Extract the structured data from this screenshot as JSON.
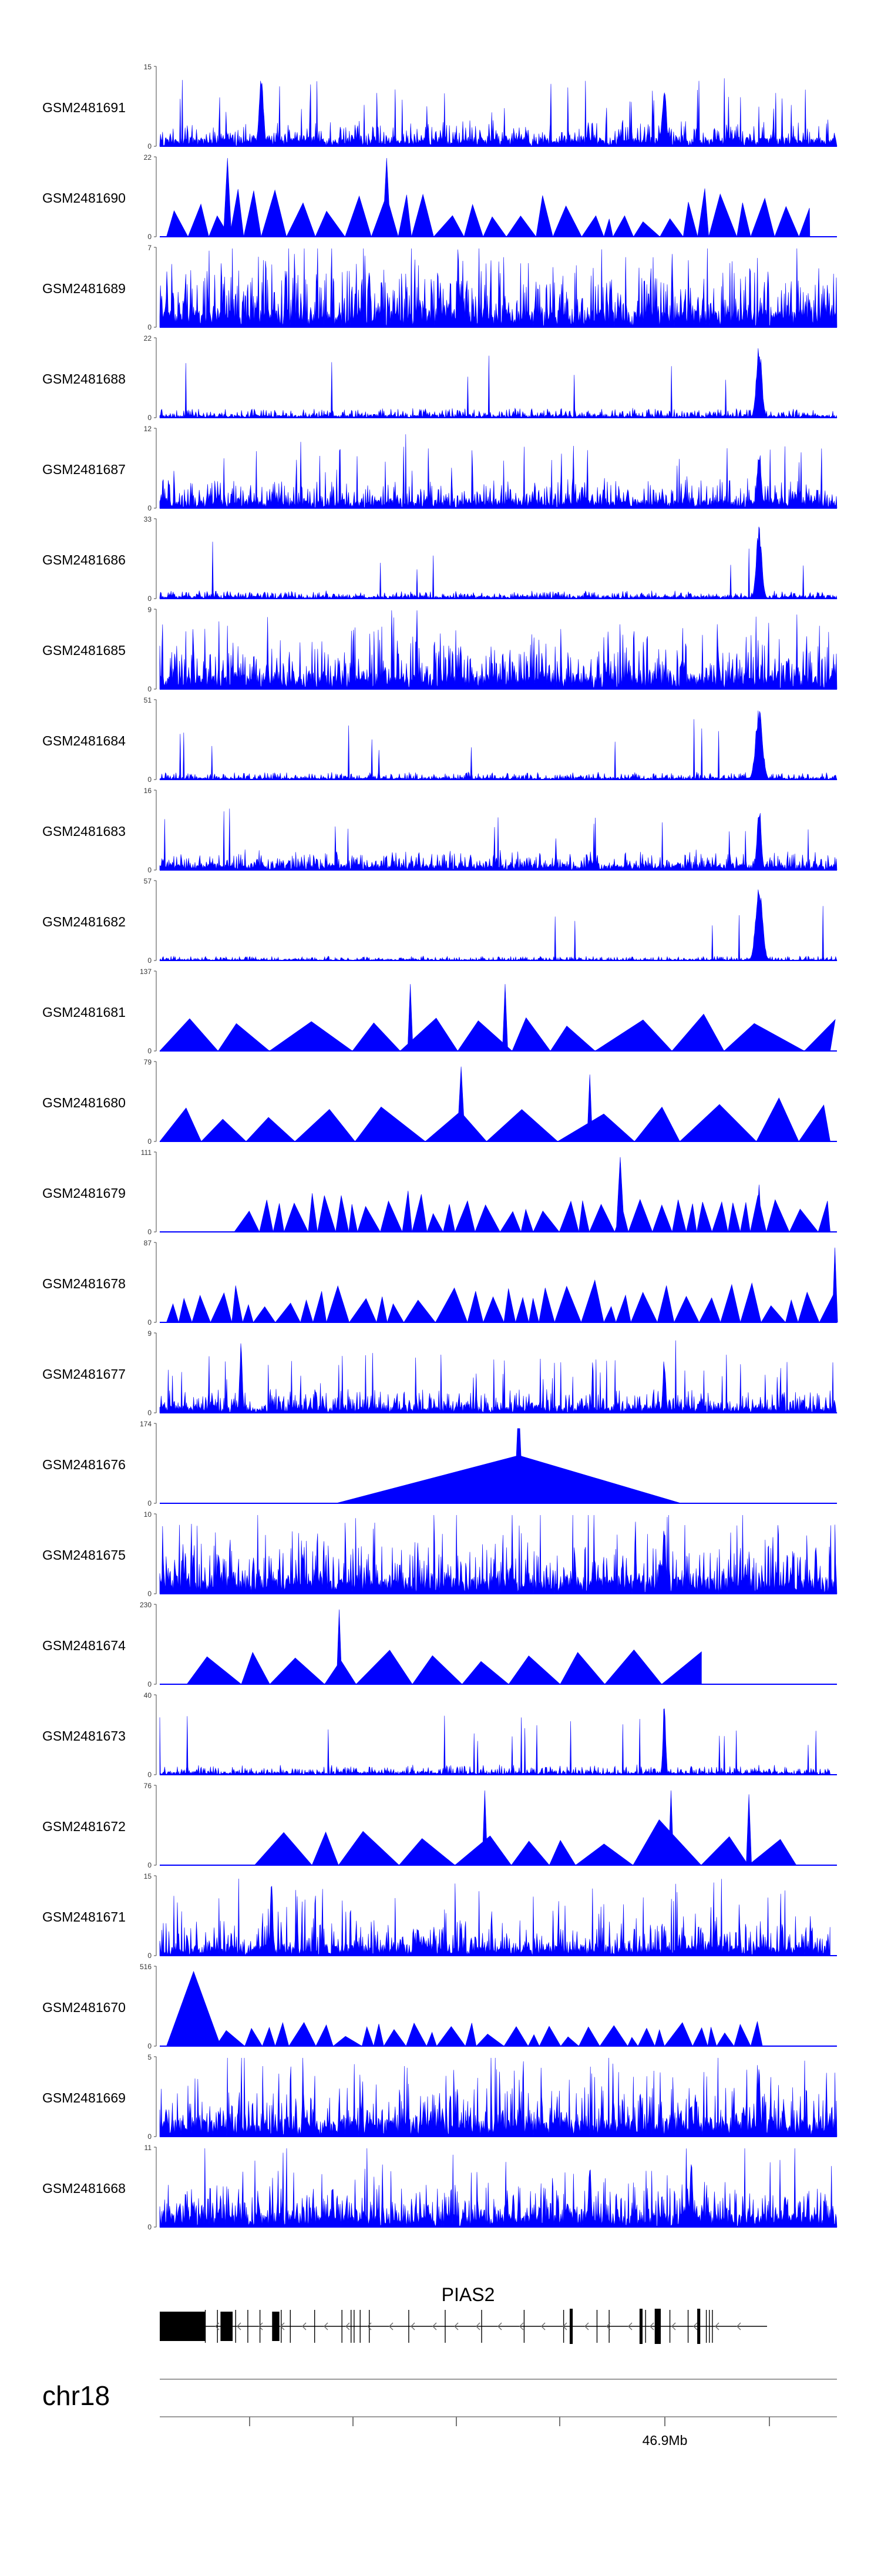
{
  "chart_data": {
    "type": "area",
    "title": "",
    "chromosome": "chr18",
    "gene": "PIAS2",
    "x_tick_labels": [
      "",
      "",
      "",
      "",
      "46.9Mb",
      ""
    ],
    "bar_color": "#0000ff",
    "tracks": [
      {
        "name": "GSM2481691",
        "ymax": "15",
        "ymin": "0",
        "style": "dense",
        "seed": 91,
        "base": 0.1,
        "noise": 0.25,
        "spike": 0.04,
        "start": 0.0,
        "end": 1.0,
        "peaks": [
          [
            0.15,
            0.003,
            0.95
          ],
          [
            0.745,
            0.003,
            0.8
          ]
        ]
      },
      {
        "name": "GSM2481690",
        "ymax": "22",
        "ymin": "0",
        "style": "tri",
        "seed": 90,
        "base": 0.3,
        "noise": 0.35,
        "spike": 0.05,
        "start": 0.01,
        "end": 0.96,
        "peaks": [
          [
            0.1,
            0.003,
            1.0
          ],
          [
            0.335,
            0.003,
            1.0
          ]
        ]
      },
      {
        "name": "GSM2481689",
        "ymax": "7",
        "ymin": "0",
        "style": "dense",
        "seed": 89,
        "base": 0.22,
        "noise": 0.55,
        "spike": 0.1,
        "start": 0.0,
        "end": 1.0,
        "peaks": []
      },
      {
        "name": "GSM2481688",
        "ymax": "22",
        "ymin": "0",
        "style": "dense",
        "seed": 88,
        "base": 0.03,
        "noise": 0.1,
        "spike": 0.01,
        "start": 0.0,
        "end": 1.0,
        "peaks": [
          [
            0.885,
            0.004,
            0.95
          ]
        ]
      },
      {
        "name": "GSM2481687",
        "ymax": "12",
        "ymin": "0",
        "style": "dense",
        "seed": 87,
        "base": 0.1,
        "noise": 0.3,
        "spike": 0.04,
        "start": 0.0,
        "end": 1.0,
        "peaks": [
          [
            0.885,
            0.003,
            0.8
          ]
        ]
      },
      {
        "name": "GSM2481686",
        "ymax": "33",
        "ymin": "0",
        "style": "dense",
        "seed": 86,
        "base": 0.03,
        "noise": 0.08,
        "spike": 0.01,
        "start": 0.0,
        "end": 1.0,
        "peaks": [
          [
            0.885,
            0.004,
            0.95
          ]
        ]
      },
      {
        "name": "GSM2481685",
        "ymax": "9",
        "ymin": "0",
        "style": "dense",
        "seed": 85,
        "base": 0.18,
        "noise": 0.45,
        "spike": 0.08,
        "start": 0.0,
        "end": 1.0,
        "peaks": []
      },
      {
        "name": "GSM2481684",
        "ymax": "51",
        "ymin": "0",
        "style": "dense",
        "seed": 84,
        "base": 0.02,
        "noise": 0.08,
        "spike": 0.01,
        "start": 0.0,
        "end": 1.0,
        "peaks": [
          [
            0.885,
            0.005,
            0.95
          ]
        ]
      },
      {
        "name": "GSM2481683",
        "ymax": "16",
        "ymin": "0",
        "style": "dense",
        "seed": 83,
        "base": 0.07,
        "noise": 0.2,
        "spike": 0.02,
        "start": 0.0,
        "end": 1.0,
        "peaks": [
          [
            0.885,
            0.003,
            0.9
          ]
        ]
      },
      {
        "name": "GSM2481682",
        "ymax": "57",
        "ymin": "0",
        "style": "dense",
        "seed": 82,
        "base": 0.01,
        "noise": 0.05,
        "spike": 0.005,
        "start": 0.0,
        "end": 1.0,
        "peaks": [
          [
            0.885,
            0.005,
            0.95
          ]
        ]
      },
      {
        "name": "GSM2481681",
        "ymax": "137",
        "ymin": "0",
        "style": "tri",
        "seed": 81,
        "base": 0.45,
        "noise": 0.1,
        "spike": 0.0,
        "start": 0.0,
        "end": 0.99,
        "peaks": [
          [
            0.37,
            0.002,
            0.85
          ],
          [
            0.51,
            0.002,
            0.85
          ]
        ]
      },
      {
        "name": "GSM2481680",
        "ymax": "79",
        "ymin": "0",
        "style": "tri",
        "seed": 80,
        "base": 0.45,
        "noise": 0.15,
        "spike": 0.0,
        "start": 0.0,
        "end": 0.99,
        "peaks": [
          [
            0.445,
            0.003,
            0.95
          ],
          [
            0.635,
            0.002,
            0.85
          ]
        ]
      },
      {
        "name": "GSM2481679",
        "ymax": "111",
        "ymin": "0",
        "style": "tri",
        "seed": 79,
        "base": 0.35,
        "noise": 0.2,
        "spike": 0.0,
        "start": 0.11,
        "end": 0.99,
        "peaks": [
          [
            0.68,
            0.003,
            0.95
          ],
          [
            0.885,
            0.002,
            0.6
          ]
        ]
      },
      {
        "name": "GSM2481678",
        "ymax": "87",
        "ymin": "0",
        "style": "tri",
        "seed": 78,
        "base": 0.3,
        "noise": 0.25,
        "spike": 0.02,
        "start": 0.01,
        "end": 1.0,
        "peaks": [
          [
            0.997,
            0.002,
            0.95
          ]
        ]
      },
      {
        "name": "GSM2481677",
        "ymax": "9",
        "ymin": "0",
        "style": "dense",
        "seed": 77,
        "base": 0.08,
        "noise": 0.25,
        "spike": 0.04,
        "start": 0.0,
        "end": 1.0,
        "peaks": [
          [
            0.12,
            0.002,
            0.9
          ],
          [
            0.745,
            0.002,
            0.75
          ]
        ]
      },
      {
        "name": "GSM2481676",
        "ymax": "174",
        "ymin": "0",
        "style": "bigtri",
        "seed": 76,
        "base": 0.95,
        "noise": 0.0,
        "spike": 0.0,
        "start": 0.26,
        "end": 0.77,
        "peaks": []
      },
      {
        "name": "GSM2481675",
        "ymax": "10",
        "ymin": "0",
        "style": "dense",
        "seed": 75,
        "base": 0.2,
        "noise": 0.45,
        "spike": 0.08,
        "start": 0.0,
        "end": 1.0,
        "peaks": [
          [
            0.745,
            0.002,
            0.95
          ]
        ]
      },
      {
        "name": "GSM2481674",
        "ymax": "230",
        "ymin": "0",
        "style": "tri",
        "seed": 74,
        "base": 0.45,
        "noise": 0.05,
        "spike": 0.0,
        "start": 0.04,
        "end": 0.8,
        "peaks": [
          [
            0.265,
            0.002,
            0.95
          ]
        ]
      },
      {
        "name": "GSM2481673",
        "ymax": "40",
        "ymin": "0",
        "style": "dense",
        "seed": 73,
        "base": 0.03,
        "noise": 0.1,
        "spike": 0.02,
        "start": 0.0,
        "end": 0.99,
        "peaks": [
          [
            0.745,
            0.002,
            0.95
          ]
        ]
      },
      {
        "name": "GSM2481672",
        "ymax": "76",
        "ymin": "0",
        "style": "tri",
        "seed": 72,
        "base": 0.45,
        "noise": 0.2,
        "spike": 0.0,
        "start": 0.14,
        "end": 0.94,
        "peaks": [
          [
            0.48,
            0.002,
            0.95
          ],
          [
            0.755,
            0.002,
            0.95
          ],
          [
            0.87,
            0.002,
            0.9
          ]
        ]
      },
      {
        "name": "GSM2481671",
        "ymax": "15",
        "ymin": "0",
        "style": "dense",
        "seed": 71,
        "base": 0.12,
        "noise": 0.35,
        "spike": 0.06,
        "start": 0.0,
        "end": 0.99,
        "peaks": [
          [
            0.165,
            0.002,
            0.95
          ]
        ]
      },
      {
        "name": "GSM2481670",
        "ymax": "516",
        "ymin": "0",
        "style": "tri",
        "seed": 70,
        "base": 0.2,
        "noise": 0.15,
        "spike": 0.0,
        "start": 0.01,
        "end": 0.89,
        "peaks": [
          [
            0.05,
            0.02,
            0.95
          ]
        ]
      },
      {
        "name": "GSM2481669",
        "ymax": "5",
        "ymin": "0",
        "style": "dense",
        "seed": 69,
        "base": 0.22,
        "noise": 0.45,
        "spike": 0.08,
        "start": 0.0,
        "end": 1.0,
        "peaks": [
          [
            0.885,
            0.002,
            0.9
          ]
        ]
      },
      {
        "name": "GSM2481668",
        "ymax": "11",
        "ymin": "0",
        "style": "dense",
        "seed": 68,
        "base": 0.18,
        "noise": 0.4,
        "spike": 0.06,
        "start": 0.0,
        "end": 1.0,
        "peaks": [
          [
            0.635,
            0.002,
            0.85
          ],
          [
            0.785,
            0.002,
            0.9
          ]
        ]
      }
    ],
    "gene_model": {
      "exons": [
        [
          0.0,
          0.075,
          "big"
        ],
        [
          0.1,
          0.12,
          "big"
        ],
        [
          0.185,
          0.197,
          "big"
        ],
        [
          0.675,
          0.68,
          "mid"
        ],
        [
          0.79,
          0.795,
          "mid"
        ],
        [
          0.815,
          0.825,
          "mid"
        ],
        [
          0.885,
          0.89,
          "mid"
        ]
      ],
      "marks": [
        0.075,
        0.095,
        0.125,
        0.145,
        0.165,
        0.2,
        0.215,
        0.255,
        0.3,
        0.315,
        0.32,
        0.33,
        0.345,
        0.41,
        0.47,
        0.53,
        0.6,
        0.665,
        0.72,
        0.74,
        0.8,
        0.84,
        0.87,
        0.9,
        0.905,
        0.91
      ]
    }
  }
}
